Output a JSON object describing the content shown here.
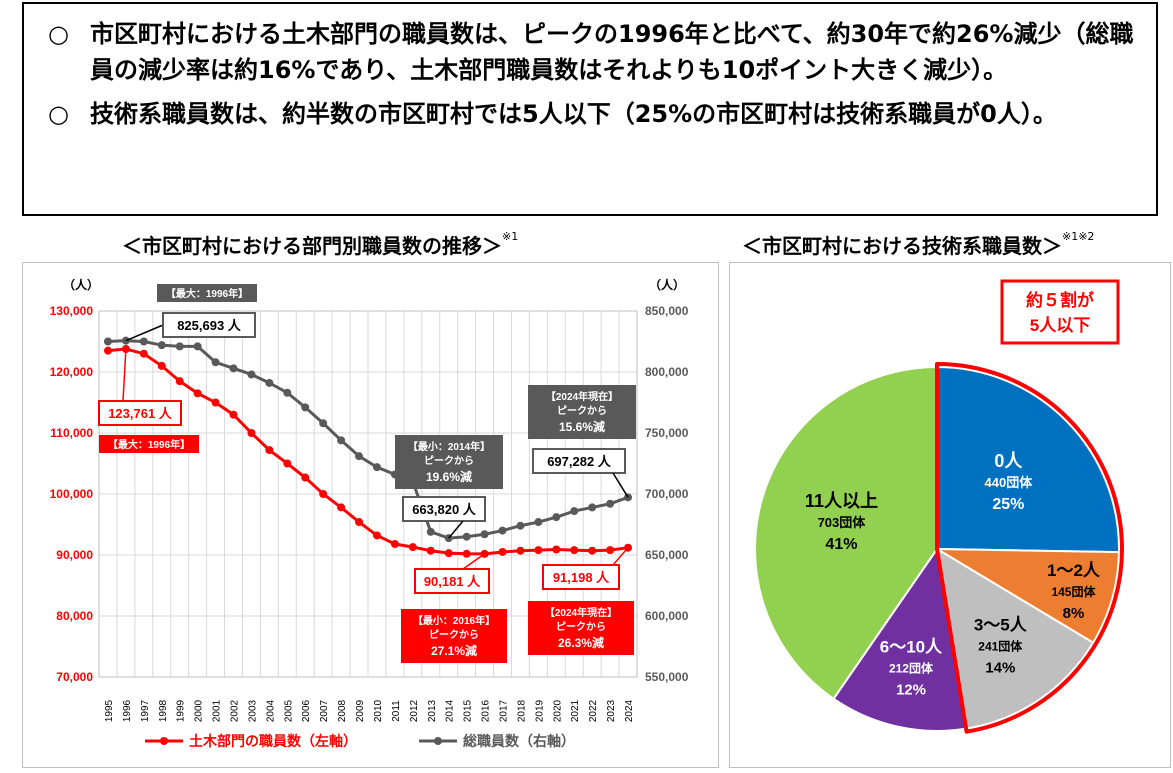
{
  "summary": {
    "bullets": [
      {
        "mark": "○",
        "text": "市区町村における土木部門の職員数は、ピークの1996年と比べて、約30年で約26%減少（総職員の減少率は約16%であり、土木部門職員数はそれよりも10ポイント大きく減少）。"
      },
      {
        "mark": "○",
        "text": "技術系職員数は、約半数の市区町村では5人以下（25%の市区町村は技術系職員が0人）。"
      }
    ]
  },
  "line_chart_title": "＜市区町村における部門別職員数の推移＞",
  "line_chart_note": "※1",
  "pie_chart_title": "＜市区町村における技術系職員数＞",
  "pie_chart_note": "※1※2",
  "line_annotations": {
    "total_peak_label": "【最大：1996年】",
    "total_peak_value": "825,693 人",
    "civil_peak_value": "123,761 人",
    "civil_peak_label": "【最大：1996年】",
    "total_min_label": "【最小：2014年】",
    "total_min_sub": "ピークから",
    "total_min_pct": "19.6%減",
    "total_min_value": "663,820 人",
    "total_now_label": "【2024年現在】",
    "total_now_sub": "ピークから",
    "total_now_pct": "15.6%減",
    "total_now_value": "697,282 人",
    "civil_min_value": "90,181 人",
    "civil_min_label": "【最小：2016年】",
    "civil_min_sub": "ピークから",
    "civil_min_pct": "27.1%減",
    "civil_now_value": "91,198 人",
    "civil_now_label": "【2024年現在】",
    "civil_now_sub": "ピークから",
    "civil_now_pct": "26.3%減"
  },
  "pie_callout": {
    "line1": "約５割が",
    "line2": "5人以下"
  },
  "colors": {
    "civil": "#ff0000",
    "total": "#595959",
    "zero": "#0070c0",
    "one_two": "#ed7d31",
    "three_five": "#bfbfbf",
    "six_ten": "#7030a0",
    "eleven_plus": "#92d050"
  },
  "chart_data": [
    {
      "type": "line",
      "title": "＜市区町村における部門別職員数の推移＞",
      "x": [
        "1995",
        "1996",
        "1997",
        "1998",
        "1999",
        "2000",
        "2001",
        "2002",
        "2003",
        "2004",
        "2005",
        "2006",
        "2007",
        "2008",
        "2009",
        "2010",
        "2011",
        "2012",
        "2013",
        "2014",
        "2015",
        "2016",
        "2017",
        "2018",
        "2019",
        "2020",
        "2021",
        "2022",
        "2023",
        "2024"
      ],
      "y_left": {
        "unit": "（人）",
        "ylim": [
          70000,
          130000
        ],
        "ticks": [
          "70,000",
          "80,000",
          "90,000",
          "100,000",
          "110,000",
          "120,000",
          "130,000"
        ]
      },
      "y_right": {
        "unit": "（人）",
        "ylim": [
          550000,
          850000
        ],
        "ticks": [
          "550,000",
          "600,000",
          "650,000",
          "700,000",
          "750,000",
          "800,000",
          "850,000"
        ]
      },
      "series": [
        {
          "name": "土木部門の職員数（左軸）",
          "axis": "left",
          "values": [
            123500,
            123761,
            123000,
            121000,
            118500,
            116500,
            115000,
            113000,
            110000,
            107200,
            105000,
            102700,
            100000,
            97800,
            95400,
            93200,
            91800,
            91300,
            90700,
            90300,
            90200,
            90181,
            90500,
            90700,
            90800,
            90900,
            90800,
            90700,
            90800,
            91198
          ]
        },
        {
          "name": "総職員数（右軸）",
          "axis": "right",
          "values": [
            825000,
            825693,
            825000,
            822000,
            821000,
            821000,
            808000,
            803000,
            798000,
            791000,
            783000,
            771000,
            758000,
            744000,
            731000,
            722000,
            716000,
            710000,
            669000,
            663820,
            665000,
            667000,
            670000,
            674000,
            677000,
            681000,
            686000,
            689000,
            692000,
            697282
          ]
        }
      ],
      "grid": true,
      "legend": "bottom"
    },
    {
      "type": "pie",
      "title": "＜市区町村における技術系職員数＞",
      "slices": [
        {
          "label": "0人",
          "count": "440団体",
          "percent": "25%",
          "value": 440
        },
        {
          "label": "1～2人",
          "count": "145団体",
          "percent": "8%",
          "value": 145
        },
        {
          "label": "3～5人",
          "count": "241団体",
          "percent": "14%",
          "value": 241
        },
        {
          "label": "6～10人",
          "count": "212団体",
          "percent": "12%",
          "value": 212
        },
        {
          "label": "11人以上",
          "count": "703団体",
          "percent": "41%",
          "value": 703
        }
      ]
    }
  ]
}
